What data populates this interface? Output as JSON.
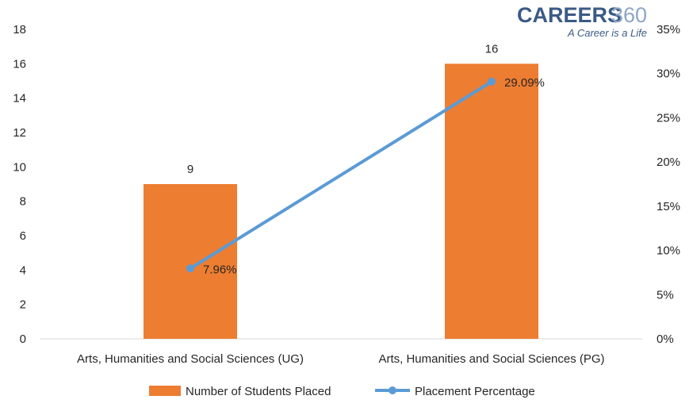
{
  "logo": {
    "brand_main": "CAREERS",
    "brand_num": "360",
    "tagline": "A Career is a Life",
    "main_color": "#3b5a86",
    "accent_color": "#8fa6c4"
  },
  "chart_data": {
    "type": "bar",
    "categories": [
      "Arts, Humanities and Social Sciences (UG)",
      "Arts, Humanities and Social Sciences (PG)"
    ],
    "series": [
      {
        "name": "Number of Students Placed",
        "type": "bar",
        "axis": "left",
        "values": [
          9,
          16
        ],
        "labels": [
          "9",
          "16"
        ],
        "color": "#ed7d31"
      },
      {
        "name": "Placement Percentage",
        "type": "line",
        "axis": "right",
        "values": [
          7.96,
          29.09
        ],
        "labels": [
          "7.96%",
          "29.09%"
        ],
        "color": "#5b9bd5"
      }
    ],
    "y_left": {
      "min": 0,
      "max": 18,
      "step": 2,
      "ticks": [
        "0",
        "2",
        "4",
        "6",
        "8",
        "10",
        "12",
        "14",
        "16",
        "18"
      ]
    },
    "y_right": {
      "min": 0,
      "max": 35,
      "step": 5,
      "ticks": [
        "0%",
        "5%",
        "10%",
        "15%",
        "20%",
        "25%",
        "30%",
        "35%"
      ]
    },
    "grid": false,
    "legend_position": "bottom"
  }
}
